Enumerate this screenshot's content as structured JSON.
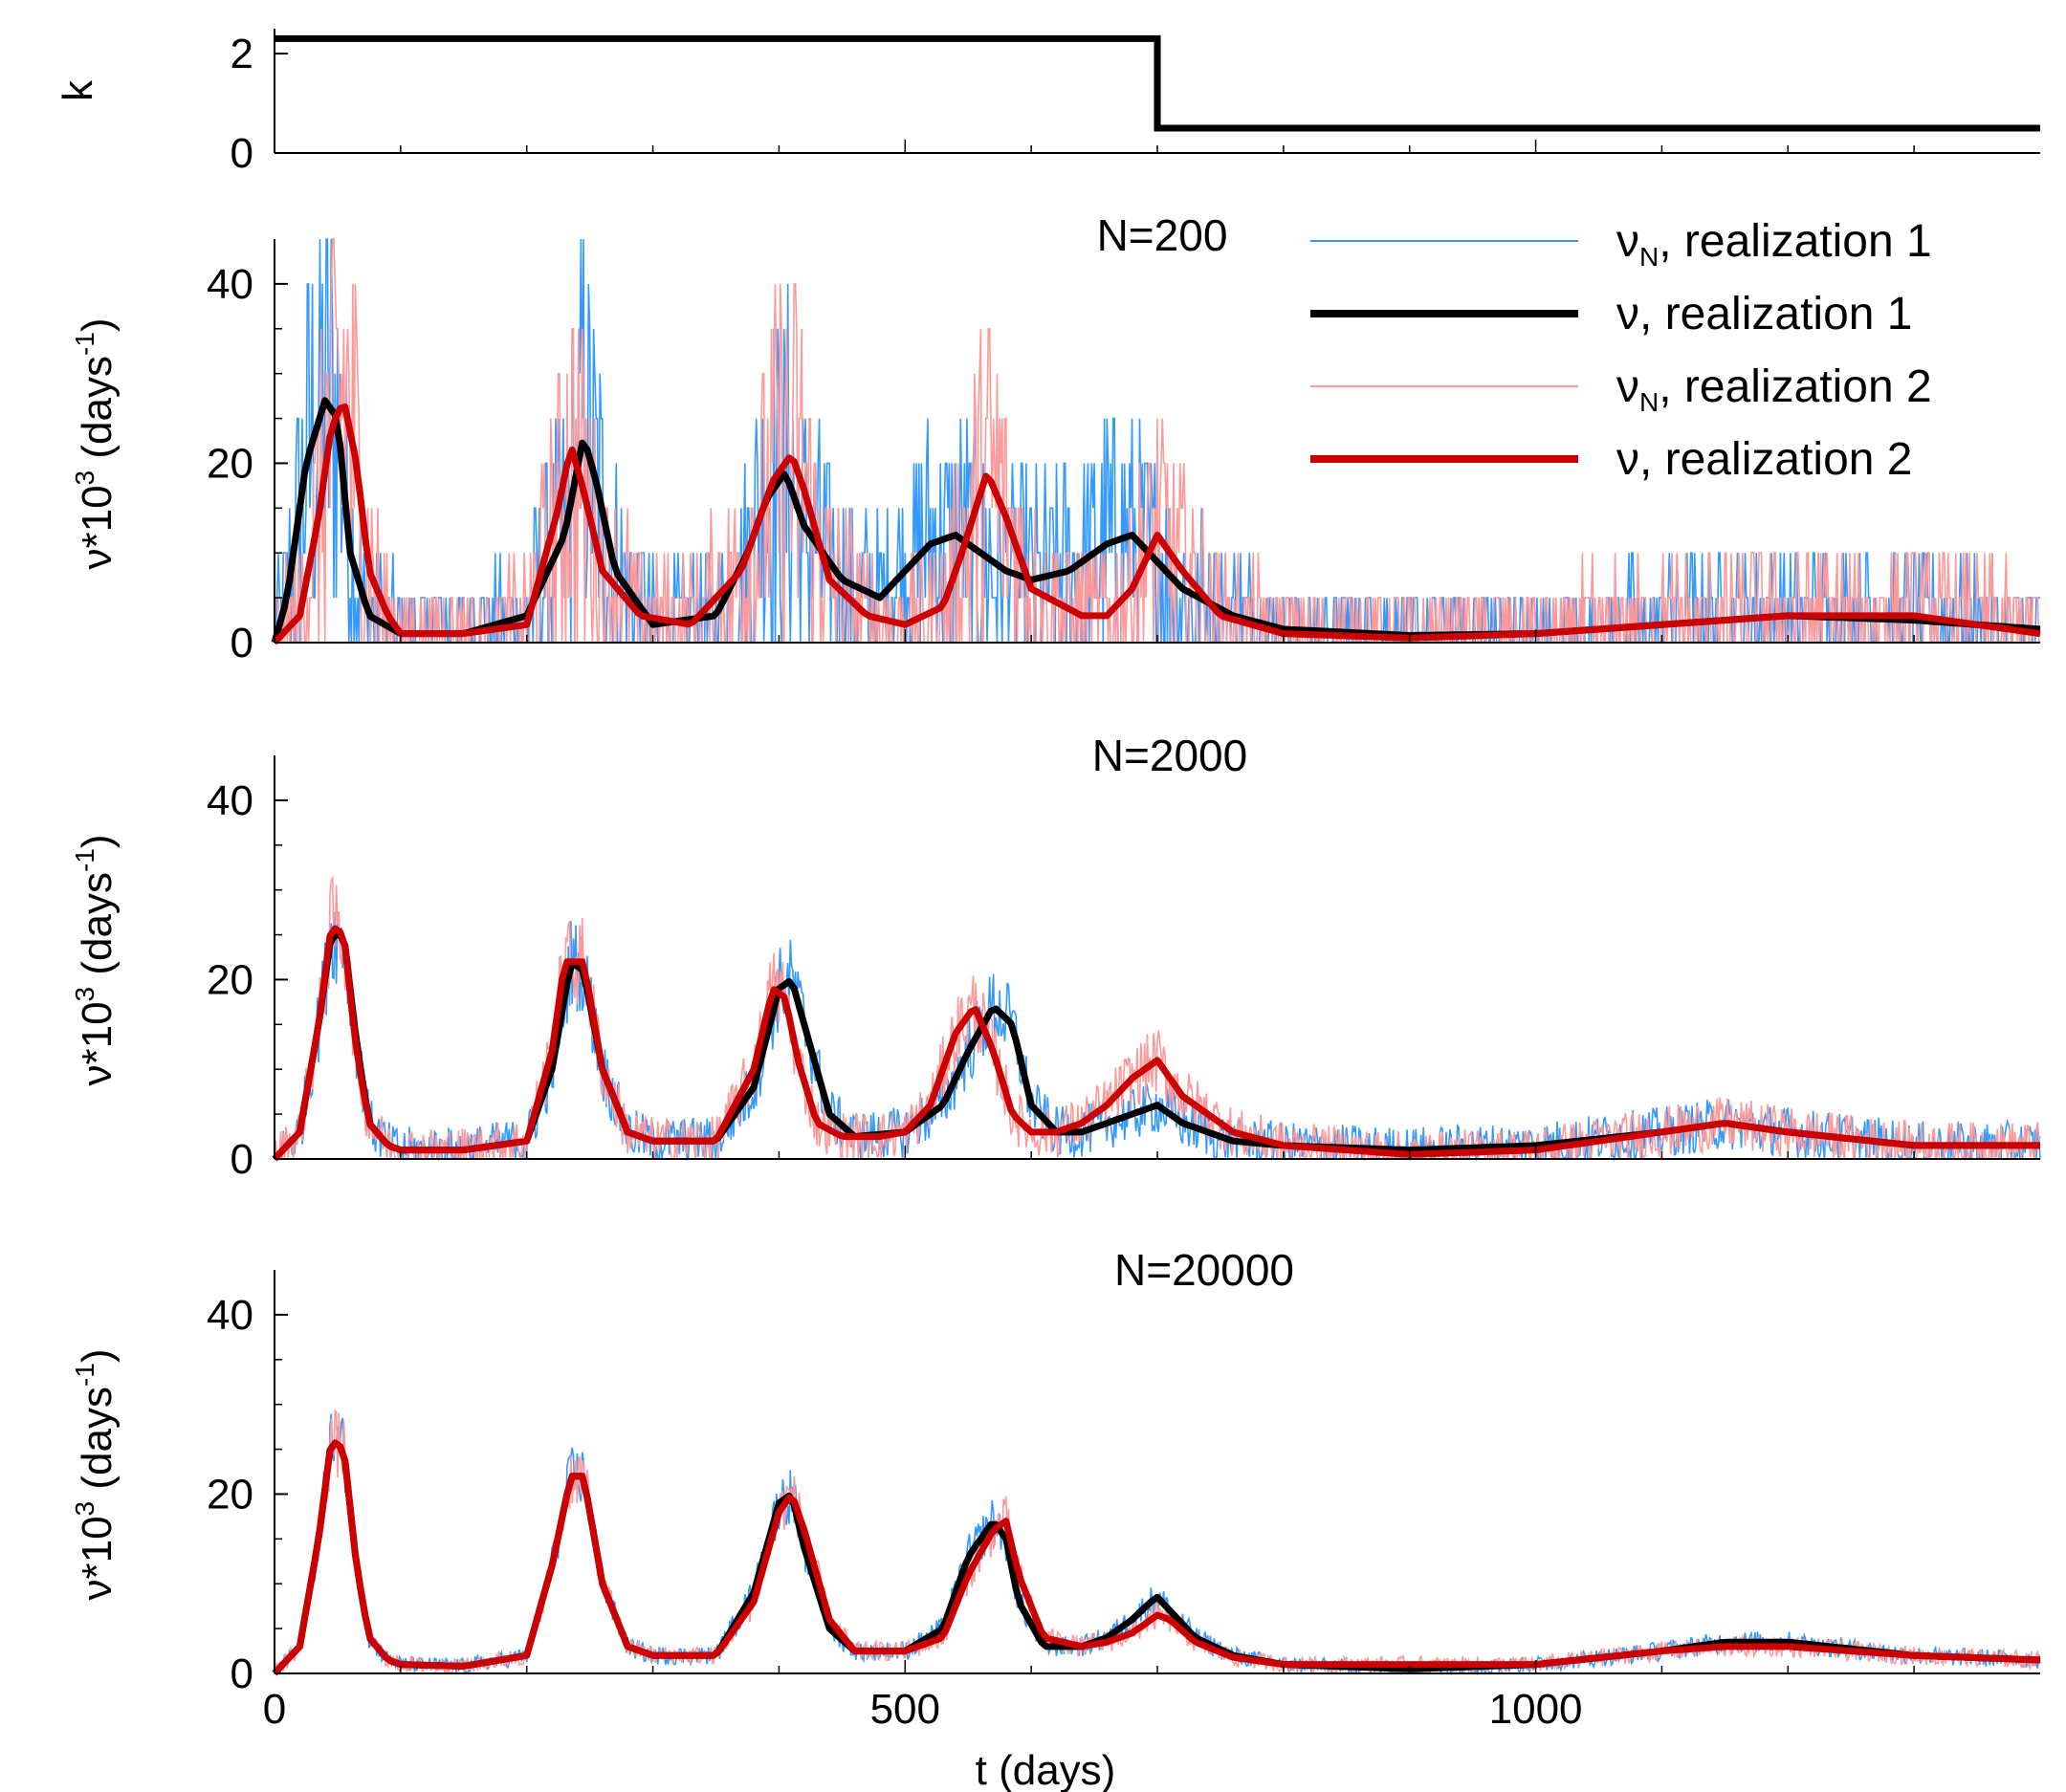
{
  "chart_data": {
    "type": "line",
    "x_axis": {
      "label": "t (days)",
      "range": [
        0,
        1400
      ],
      "ticks": [
        0,
        500,
        1000
      ]
    },
    "legend": {
      "placement": "top-right of N=200 panel",
      "entries": [
        {
          "id": "nuN1",
          "symbol": "ν",
          "subscript": "N",
          "label": ", realization 1",
          "color": "#3399ff"
        },
        {
          "id": "nu1",
          "symbol": "ν",
          "subscript": "",
          "label": ",   realization 1",
          "color": "#000000"
        },
        {
          "id": "nuN2",
          "symbol": "ν",
          "subscript": "N",
          "label": ", realization 2",
          "color": "#ff9999"
        },
        {
          "id": "nu2",
          "symbol": "ν",
          "subscript": "",
          "label": ",   realization 2",
          "color": "#cc0000"
        }
      ]
    },
    "panels": [
      {
        "id": "k",
        "ylabel": "k",
        "ylim": [
          0,
          2.5
        ],
        "yticks": [
          0,
          2
        ],
        "series": [
          {
            "color": "#000000",
            "x": [
              0,
              700,
              700,
              1400
            ],
            "y": [
              2.3,
              2.3,
              0.5,
              0.5
            ]
          }
        ]
      },
      {
        "id": "n200",
        "title": "N=200",
        "ylabel": {
          "prefix": "ν*10",
          "exp": "3",
          "mid": " (days",
          "exp2": "-1",
          "suffix": ")"
        },
        "ylim": [
          0,
          45
        ],
        "yticks": [
          0,
          20,
          40
        ],
        "noise": {
          "base": 5,
          "step": 5
        },
        "smooth": {
          "r1": {
            "x": [
              0,
              10,
              25,
              40,
              50,
              60,
              75,
              100,
              150,
              200,
              230,
              245,
              255,
              270,
              300,
              350,
              375,
              390,
              405,
              420,
              450,
              480,
              500,
              520,
              540,
              560,
              580,
              600,
              630,
              660,
              680,
              700,
              720,
              760,
              800,
              900,
              1000,
              1100,
              1150,
              1200,
              1300,
              1400
            ],
            "y": [
              0,
              5,
              20,
              27,
              25,
              10,
              3,
              1,
              1,
              3,
              12,
              23,
              18,
              8,
              2,
              3,
              10,
              16,
              19,
              13,
              7,
              5,
              8,
              11,
              12,
              10,
              8,
              7,
              8,
              11,
              12,
              9,
              6,
              3,
              1.5,
              0.8,
              1,
              2,
              2.5,
              3,
              2.5,
              1.5
            ]
          },
          "r2": {
            "x": [
              0,
              20,
              35,
              45,
              55,
              65,
              75,
              90,
              100,
              150,
              200,
              225,
              235,
              245,
              260,
              290,
              330,
              370,
              395,
              410,
              420,
              440,
              470,
              500,
              530,
              545,
              565,
              580,
              600,
              640,
              660,
              680,
              700,
              720,
              750,
              800,
              900,
              1000,
              1100,
              1150,
              1200,
              1300,
              1400
            ],
            "y": [
              0,
              3,
              14,
              24,
              27,
              20,
              8,
              3,
              1,
              1,
              2,
              15,
              22,
              17,
              8,
              3,
              2,
              8,
              18,
              21,
              17,
              7,
              3,
              2,
              4,
              10,
              19,
              14,
              6,
              3,
              3,
              6,
              12,
              8,
              3,
              1,
              0.5,
              1,
              2,
              2.5,
              3,
              3,
              1
            ]
          }
        }
      },
      {
        "id": "n2000",
        "title": "N=2000",
        "ylabel": {
          "prefix": "ν*10",
          "exp": "3",
          "mid": " (days",
          "exp2": "-1",
          "suffix": ")"
        },
        "ylim": [
          0,
          45
        ],
        "yticks": [
          0,
          20,
          40
        ],
        "noise": {
          "base": 2.5,
          "step": 0
        },
        "smooth": {
          "r1": {
            "x": [
              0,
              20,
              35,
              45,
              55,
              65,
              75,
              90,
              100,
              150,
              200,
              220,
              235,
              245,
              260,
              280,
              300,
              350,
              380,
              400,
              410,
              420,
              440,
              460,
              500,
              530,
              550,
              570,
              585,
              600,
              620,
              640,
              660,
              680,
              700,
              720,
              760,
              800,
              900,
              1000,
              1100,
              1150,
              1200,
              1300,
              1400
            ],
            "y": [
              0,
              3,
              15,
              25,
              25,
              13,
              4,
              1.5,
              1,
              1,
              2,
              10,
              22,
              21,
              10,
              3,
              2,
              2,
              8,
              19,
              20,
              15,
              5,
              2.5,
              3,
              6,
              12,
              17,
              15,
              6,
              3,
              3,
              4,
              5,
              6,
              4,
              2,
              1.5,
              1,
              1.5,
              3,
              4,
              3,
              1.5,
              1.5
            ]
          },
          "r2": {
            "x": [
              0,
              20,
              35,
              45,
              55,
              65,
              75,
              90,
              100,
              150,
              200,
              220,
              230,
              245,
              260,
              280,
              300,
              350,
              380,
              395,
              405,
              415,
              430,
              450,
              480,
              500,
              520,
              540,
              555,
              570,
              585,
              600,
              620,
              640,
              660,
              680,
              700,
              720,
              760,
              800,
              900,
              1000,
              1100,
              1150,
              1200,
              1300,
              1400
            ],
            "y": [
              0,
              3,
              15,
              26,
              25,
              12,
              4,
              1.5,
              1,
              1,
              2,
              12,
              22,
              22,
              10,
              3,
              2,
              2,
              10,
              19,
              18,
              11,
              4,
              2.5,
              2.5,
              3,
              6,
              14,
              17,
              12,
              5,
              3,
              3,
              4,
              6,
              9,
              11,
              7,
              3,
              1.5,
              0.5,
              1,
              3,
              4,
              3,
              1.5,
              1.5
            ]
          }
        }
      },
      {
        "id": "n20000",
        "title": "N=20000",
        "ylabel": {
          "prefix": "ν*10",
          "exp": "3",
          "mid": " (days",
          "exp2": "-1",
          "suffix": ")"
        },
        "ylim": [
          0,
          45
        ],
        "yticks": [
          0,
          20,
          40
        ],
        "noise": {
          "base": 0.8,
          "step": 0
        },
        "smooth": {
          "r1": {
            "x": [
              0,
              20,
              35,
              45,
              55,
              65,
              75,
              90,
              100,
              150,
              200,
              220,
              235,
              245,
              260,
              280,
              300,
              350,
              380,
              400,
              410,
              420,
              440,
              460,
              500,
              530,
              550,
              570,
              580,
              590,
              610,
              640,
              660,
              680,
              695,
              700,
              710,
              730,
              760,
              800,
              900,
              1000,
              1100,
              1150,
              1200,
              1300,
              1400
            ],
            "y": [
              0,
              3,
              15,
              26,
              25,
              12,
              4,
              1.5,
              1,
              0.8,
              2,
              12,
              22,
              22,
              10,
              3,
              2,
              2,
              9,
              19,
              20,
              14,
              5,
              2.5,
              2.5,
              5,
              13,
              17,
              15,
              8,
              3,
              3,
              4,
              6,
              8,
              8.5,
              7,
              4,
              2,
              1,
              0.5,
              1,
              2.5,
              3.5,
              3.5,
              2,
              1.5
            ]
          },
          "r2": {
            "x": [
              0,
              20,
              35,
              45,
              55,
              65,
              75,
              90,
              100,
              150,
              200,
              220,
              235,
              245,
              260,
              280,
              300,
              350,
              380,
              400,
              410,
              420,
              440,
              460,
              500,
              530,
              550,
              570,
              580,
              590,
              610,
              640,
              660,
              680,
              695,
              700,
              710,
              730,
              760,
              800,
              900,
              1000,
              1100,
              1150,
              1200,
              1300,
              1400
            ],
            "y": [
              0,
              3,
              15,
              26,
              25,
              12,
              4,
              1.5,
              1,
              0.8,
              2,
              12,
              22,
              22,
              10,
              3,
              2,
              2,
              8,
              18,
              20,
              16,
              6,
              2.5,
              2.5,
              4,
              11,
              16,
              17,
              11,
              4,
              3,
              3.5,
              4.5,
              6,
              6.5,
              6,
              3.5,
              1.8,
              1,
              1,
              1,
              2.5,
              3,
              3,
              2,
              1.5
            ]
          }
        }
      }
    ]
  }
}
